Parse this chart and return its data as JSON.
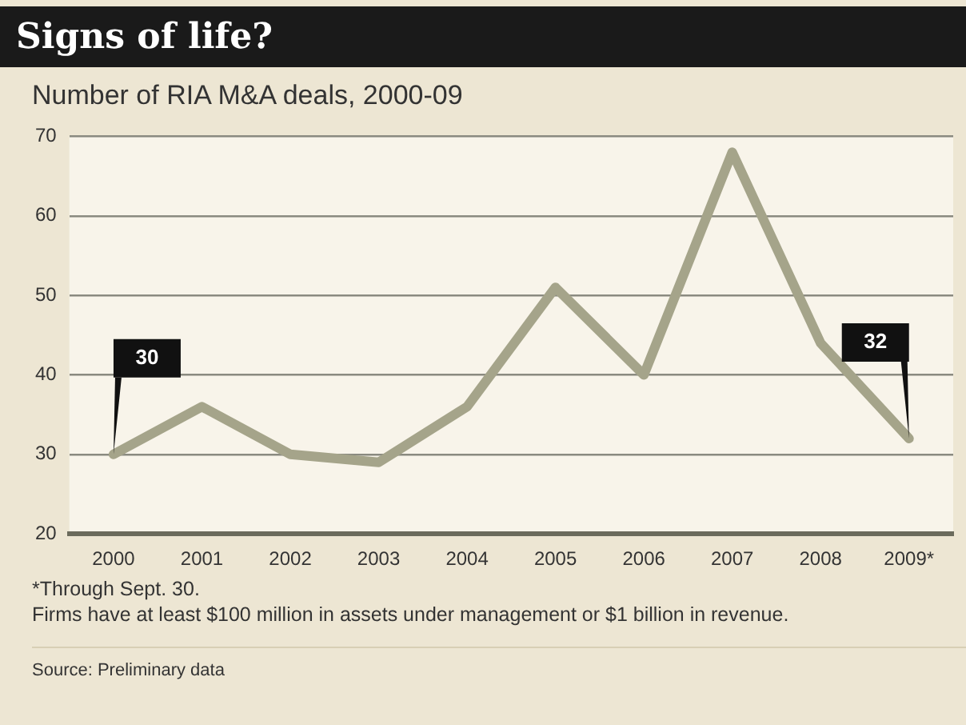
{
  "chart_data": {
    "type": "line",
    "title": "Signs of life?",
    "subtitle": "Number of RIA M&A deals, 2000-09",
    "categories": [
      "2000",
      "2001",
      "2002",
      "2003",
      "2004",
      "2005",
      "2006",
      "2007",
      "2008",
      "2009*"
    ],
    "series": [
      {
        "color": "#a5a48a",
        "values": [
          30,
          36,
          30,
          29,
          36,
          51,
          40,
          68,
          44,
          32
        ],
        "value_labels": [
          "30",
          null,
          null,
          null,
          null,
          null,
          null,
          null,
          null,
          "32"
        ]
      }
    ],
    "ylim": [
      20,
      70
    ],
    "yticks": [
      20,
      30,
      40,
      50,
      60,
      70
    ],
    "grid": "y",
    "legend": false,
    "marker": "none",
    "line_style": "solid",
    "annotations": [
      "*Through Sept. 30.",
      "Firms have at least $100 million in assets under management or $1 billion in revenue.",
      "Source: Preliminary data"
    ]
  }
}
